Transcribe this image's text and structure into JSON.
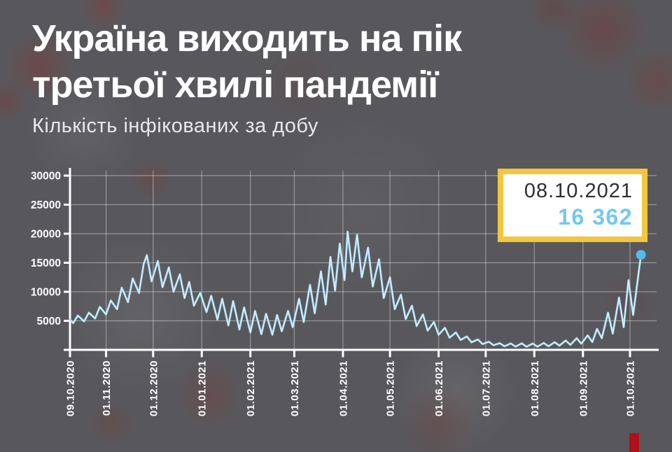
{
  "header": {
    "title_line1": "Україна виходить на пік",
    "title_line2": "третьої хвилі пандемії",
    "subtitle": "Кількість інфікованих за добу"
  },
  "callout": {
    "date": "08.10.2021",
    "value": "16 362",
    "border_color": "#f2c63e",
    "background": "#ffffff",
    "date_color": "#2e2e31",
    "value_color": "#74c8f0"
  },
  "decor": {
    "red_bar_color": "#ae1117"
  },
  "colors": {
    "background": "#58585c",
    "axis": "#ffffff",
    "grid": "rgba(255,255,255,0.38)",
    "tick_label": "#ffffff"
  },
  "chart_data": {
    "type": "line",
    "title": "Кількість інфікованих за добу",
    "xlabel": "",
    "ylabel": "",
    "grid": true,
    "line_color": "#a4dbf5",
    "line_core_color": "#ddf2fc",
    "marker_color": "#58b9eb",
    "y_ticks": [
      5000,
      10000,
      15000,
      20000,
      25000,
      30000
    ],
    "ylim": [
      0,
      31000
    ],
    "x_tick_labels": [
      "09.10.2020",
      "01.11.2020",
      "01.12.2020",
      "01.01.2021",
      "01.02.2021",
      "01.03.2021",
      "01.04.2021",
      "01.05.2021",
      "01.06.2021",
      "01.07.2021",
      "01.08.2021",
      "01.09.2021",
      "01.10.2021"
    ],
    "x_tick_days": [
      0,
      23,
      53,
      84,
      115,
      143,
      174,
      204,
      235,
      265,
      296,
      327,
      357
    ],
    "x_range_days": [
      0,
      364
    ],
    "highlight": {
      "date": "08.10.2021",
      "value": 16362
    },
    "series": [
      {
        "name": "Кількість інфікованих за добу",
        "points": [
          [
            0,
            5200
          ],
          [
            2,
            4600
          ],
          [
            5,
            5900
          ],
          [
            9,
            4900
          ],
          [
            12,
            6400
          ],
          [
            16,
            5400
          ],
          [
            19,
            7400
          ],
          [
            23,
            6100
          ],
          [
            26,
            8500
          ],
          [
            30,
            7000
          ],
          [
            33,
            10700
          ],
          [
            37,
            8200
          ],
          [
            40,
            12300
          ],
          [
            44,
            9800
          ],
          [
            47,
            14800
          ],
          [
            49,
            16300
          ],
          [
            52,
            11800
          ],
          [
            56,
            15300
          ],
          [
            59,
            10800
          ],
          [
            63,
            14200
          ],
          [
            66,
            10000
          ],
          [
            70,
            13000
          ],
          [
            73,
            8900
          ],
          [
            76,
            11700
          ],
          [
            79,
            7600
          ],
          [
            83,
            9800
          ],
          [
            87,
            6500
          ],
          [
            90,
            9300
          ],
          [
            94,
            5200
          ],
          [
            97,
            8800
          ],
          [
            101,
            4200
          ],
          [
            104,
            8400
          ],
          [
            108,
            3500
          ],
          [
            111,
            7300
          ],
          [
            115,
            3000
          ],
          [
            118,
            6700
          ],
          [
            122,
            2700
          ],
          [
            125,
            6200
          ],
          [
            129,
            2600
          ],
          [
            132,
            6000
          ],
          [
            135,
            3200
          ],
          [
            139,
            6700
          ],
          [
            142,
            3900
          ],
          [
            146,
            8800
          ],
          [
            149,
            4800
          ],
          [
            153,
            11200
          ],
          [
            156,
            6300
          ],
          [
            160,
            13500
          ],
          [
            163,
            7800
          ],
          [
            166,
            16000
          ],
          [
            169,
            10200
          ],
          [
            172,
            18300
          ],
          [
            175,
            12000
          ],
          [
            177,
            20350
          ],
          [
            180,
            13500
          ],
          [
            183,
            19800
          ],
          [
            186,
            12500
          ],
          [
            190,
            17600
          ],
          [
            193,
            10900
          ],
          [
            197,
            15600
          ],
          [
            200,
            8900
          ],
          [
            204,
            12500
          ],
          [
            207,
            7000
          ],
          [
            211,
            9500
          ],
          [
            214,
            5300
          ],
          [
            218,
            7600
          ],
          [
            221,
            4100
          ],
          [
            225,
            6100
          ],
          [
            228,
            3300
          ],
          [
            232,
            4800
          ],
          [
            235,
            2600
          ],
          [
            239,
            3800
          ],
          [
            242,
            2100
          ],
          [
            246,
            3000
          ],
          [
            249,
            1700
          ],
          [
            253,
            2300
          ],
          [
            256,
            1300
          ],
          [
            260,
            1800
          ],
          [
            263,
            1000
          ],
          [
            267,
            1400
          ],
          [
            270,
            800
          ],
          [
            274,
            1150
          ],
          [
            277,
            620
          ],
          [
            281,
            1100
          ],
          [
            284,
            560
          ],
          [
            288,
            1120
          ],
          [
            291,
            540
          ],
          [
            295,
            1080
          ],
          [
            298,
            560
          ],
          [
            302,
            1180
          ],
          [
            305,
            620
          ],
          [
            309,
            1320
          ],
          [
            312,
            720
          ],
          [
            316,
            1600
          ],
          [
            319,
            860
          ],
          [
            323,
            2000
          ],
          [
            326,
            1060
          ],
          [
            330,
            2500
          ],
          [
            333,
            1350
          ],
          [
            336,
            3600
          ],
          [
            339,
            2000
          ],
          [
            343,
            6400
          ],
          [
            346,
            2800
          ],
          [
            350,
            9000
          ],
          [
            353,
            3900
          ],
          [
            356,
            12000
          ],
          [
            359,
            6000
          ],
          [
            364,
            16362
          ]
        ]
      }
    ]
  }
}
